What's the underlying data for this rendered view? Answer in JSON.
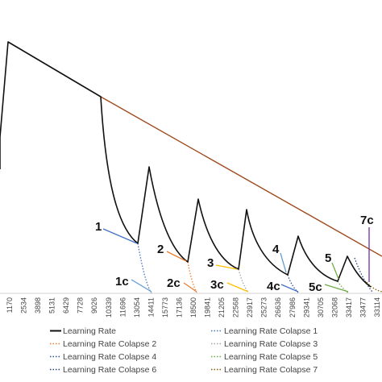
{
  "chart_data": {
    "type": "line",
    "title": "",
    "xlabel": "",
    "ylabel": "",
    "x_ticks": [
      "1170",
      "2534",
      "3898",
      "5131",
      "6429",
      "7728",
      "9026",
      "10339",
      "11696",
      "13054",
      "14411",
      "15773",
      "17136",
      "18500",
      "19841",
      "21205",
      "22568",
      "23917",
      "25273",
      "26636",
      "27986",
      "29341",
      "30705",
      "32068",
      "33417",
      "33477",
      "33114"
    ],
    "grid": false,
    "legend_position": "bottom",
    "series": [
      {
        "name": "Learning Rate",
        "color": "#111111",
        "style": "solid"
      },
      {
        "name": "Learning Rate Colapse 1",
        "color": "#4472C4",
        "style": "dotted"
      },
      {
        "name": "Learning Rate Colapse 2",
        "color": "#ED7D31",
        "style": "dotted"
      },
      {
        "name": "Learning Rate Colapse 3",
        "color": "#A5A5A5",
        "style": "dotted"
      },
      {
        "name": "Learning Rate Colapse 4",
        "color": "#2F5597",
        "style": "dotted"
      },
      {
        "name": "Learning Rate Colapse 5",
        "color": "#70AD47",
        "style": "dotted"
      },
      {
        "name": "Learning Rate Colapse 6",
        "color": "#264478",
        "style": "dotted"
      },
      {
        "name": "Learning Rate Colapse 7",
        "color": "#806000",
        "style": "dotted"
      }
    ],
    "linear_decay_color": "#9E4A1C",
    "annotations": [
      {
        "label": "1",
        "color": "#4472C4"
      },
      {
        "label": "2",
        "color": "#ED7D31"
      },
      {
        "label": "3",
        "color": "#FFC000"
      },
      {
        "label": "4",
        "color": "#5B9BD5"
      },
      {
        "label": "5",
        "color": "#70AD47"
      },
      {
        "label": "7c",
        "color": "#7030A0"
      },
      {
        "label": "1c",
        "color": "#5B9BD5"
      },
      {
        "label": "2c",
        "color": "#ED7D31"
      },
      {
        "label": "3c",
        "color": "#FFC000"
      },
      {
        "label": "4c",
        "color": "#4472C4"
      },
      {
        "label": "5c",
        "color": "#70AD47"
      }
    ]
  }
}
